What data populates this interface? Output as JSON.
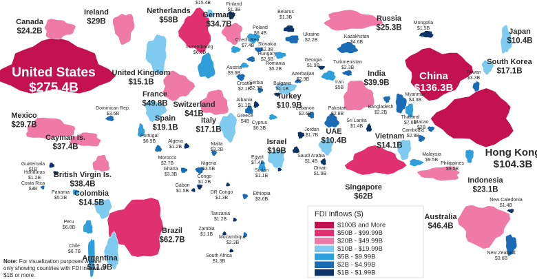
{
  "title": null,
  "countries": [
    {
      "name": "United States",
      "value": "$275.4B",
      "color": "#c3124f"
    },
    {
      "name": "Canada",
      "value": "$24.2B",
      "color": "#f07aa6"
    },
    {
      "name": "Ireland",
      "value": "$29B",
      "color": "#f07aa6"
    },
    {
      "name": "Netherlands",
      "value": "$58B",
      "color": "#e0306f"
    },
    {
      "value": "$15.4B",
      "color": "#7fcbf0"
    },
    {
      "name": "Finland",
      "value": "$1.3B",
      "color": "#0d3466"
    },
    {
      "name": "Germany",
      "value": "$34.7B",
      "color": "#f07aa6"
    },
    {
      "name": "Belarus",
      "value": "$1.3B",
      "color": "#0d3466"
    },
    {
      "name": "Russia",
      "value": "$25.3B",
      "color": "#f07aa6"
    },
    {
      "name": "Poland",
      "value": "$6.4B",
      "color": "#2f9fdc"
    },
    {
      "name": "Ukraine",
      "value": "$2.2B",
      "color": "#1a6cb4"
    },
    {
      "name": "Kazakhstan",
      "value": "$4.6B",
      "color": "#1a6cb4"
    },
    {
      "name": "Czech Rep.",
      "value": "$7.4B",
      "color": "#2f9fdc"
    },
    {
      "name": "Slovakia",
      "value": "$2.3B",
      "color": "#1a6cb4"
    },
    {
      "name": "Hungary",
      "value": "$2.5B",
      "color": "#1a6cb4"
    },
    {
      "name": "Austria",
      "value": "$9.6B",
      "color": "#2f9fdc"
    },
    {
      "name": "Romania",
      "value": "$5.2B",
      "color": "#2f9fdc"
    },
    {
      "name": "Croatia",
      "value": "$2.1B",
      "color": "#1a6cb4"
    },
    {
      "name": "Mongolia",
      "value": "$1.5B",
      "color": "#0d3466"
    },
    {
      "name": "Japan",
      "value": "$10.4B",
      "color": "#7fcbf0"
    },
    {
      "name": "South Korea",
      "value": "$17.1B",
      "color": "#7fcbf0"
    },
    {
      "name": "United Kingdom",
      "value": "$15.1B",
      "color": "#7fcbf0"
    },
    {
      "name": "Luxembourg",
      "value": "$6.6B",
      "color": "#2f9fdc"
    },
    {
      "name": "France",
      "value": "$49.8B",
      "color": "#f07aa6"
    },
    {
      "name": "Georgia",
      "value": "$1.9B",
      "color": "#0d3466"
    },
    {
      "name": "Turkmenistan",
      "value": "$2.3B",
      "color": "#1a6cb4"
    },
    {
      "name": "Azerbaijan",
      "value": "$2.9B",
      "color": "#1a6cb4"
    },
    {
      "name": "Serbia",
      "value": "$2.3B",
      "color": "#1a6cb4"
    },
    {
      "name": "Bulgaria",
      "value": "$1.1B",
      "color": "#0d3466"
    },
    {
      "name": "Iran",
      "value": "$5B",
      "color": "#2f9fdc"
    },
    {
      "name": "India",
      "value": "$39.9B",
      "color": "#f07aa6"
    },
    {
      "name": "China",
      "value": "$136.3B",
      "color": "#c3124f"
    },
    {
      "name": "Taiwan",
      "value": "$3.3B",
      "color": "#1a6cb4"
    },
    {
      "name": "Switzerland",
      "value": "$41B",
      "color": "#f07aa6"
    },
    {
      "name": "Albania",
      "value": "$1.1B",
      "color": "#0d3466"
    },
    {
      "name": "Turkey",
      "value": "$10.9B",
      "color": "#7fcbf0"
    },
    {
      "name": "Lebanon",
      "value": "$2.6B",
      "color": "#1a6cb4"
    },
    {
      "name": "Pakistan",
      "value": "$2.8B",
      "color": "#1a6cb4"
    },
    {
      "name": "Myanmar",
      "value": "$4.3B",
      "color": "#1a6cb4"
    },
    {
      "name": "Bangladesh",
      "value": "$2.2B",
      "color": "#1a6cb4"
    },
    {
      "name": "Dominican Rep.",
      "value": "$3.6B",
      "color": "#1a6cb4"
    },
    {
      "name": "Mexico",
      "value": "$29.7B",
      "color": "#f07aa6"
    },
    {
      "name": "Spain",
      "value": "$19.1B",
      "color": "#7fcbf0"
    },
    {
      "name": "Italy",
      "value": "$17.1B",
      "color": "#7fcbf0"
    },
    {
      "name": "Greece",
      "value": "$4B",
      "color": "#1a6cb4"
    },
    {
      "name": "Cyprus",
      "value": "$6.3B",
      "color": "#2f9fdc"
    },
    {
      "name": "Macao",
      "value": "$2B",
      "color": "#1a6cb4"
    },
    {
      "name": "Thailand",
      "value": "$7.6B",
      "color": "#2f9fdc"
    },
    {
      "name": "Sri Lanka",
      "value": "$1.4B",
      "color": "#0d3466"
    },
    {
      "name": "Cambodia",
      "value": "$2.8B",
      "color": "#1a6cb4"
    },
    {
      "name": "Vietnam",
      "value": "$14.1B",
      "color": "#7fcbf0"
    },
    {
      "name": "Hong Kong",
      "value": "$104.3B",
      "color": "#c3124f"
    },
    {
      "name": "Portugal",
      "value": "$6.9B",
      "color": "#2f9fdc"
    },
    {
      "name": "Jordan",
      "value": "$1.7B",
      "color": "#0d3466"
    },
    {
      "name": "UAE",
      "value": "$10.4B",
      "color": "#7fcbf0"
    },
    {
      "name": "Cayman Is.",
      "value": "$37.4B",
      "color": "#f07aa6"
    },
    {
      "name": "Algeria",
      "value": "$1.2B",
      "color": "#0d3466"
    },
    {
      "name": "Malta",
      "value": "$3.2B",
      "color": "#1a6cb4"
    },
    {
      "name": "Israel",
      "value": "$19B",
      "color": "#7fcbf0"
    },
    {
      "name": "Saudi Arabia",
      "value": "$1.4B",
      "color": "#0d3466"
    },
    {
      "name": "Malaysia",
      "value": "$9.5B",
      "color": "#2f9fdc"
    },
    {
      "name": "Philippines",
      "value": "$9.5B",
      "color": "#2f9fdc"
    },
    {
      "name": "Oman",
      "value": "$1.9B",
      "color": "#0d3466"
    },
    {
      "name": "Morocco",
      "value": "$2.7B",
      "color": "#1a6cb4"
    },
    {
      "name": "Ghana",
      "value": "$3.3B",
      "color": "#1a6cb4"
    },
    {
      "name": "Nigeria",
      "value": "$3.5B",
      "color": "#1a6cb4"
    },
    {
      "name": "Egypt",
      "value": "$7.4B",
      "color": "#2f9fdc"
    },
    {
      "name": "Guatemala",
      "value": "$1B",
      "color": "#0d3466"
    },
    {
      "name": "Honduras",
      "value": "$1.2B",
      "color": "#0d3466"
    },
    {
      "name": "Costa Rica",
      "value": "$3B",
      "color": "#1a6cb4"
    },
    {
      "name": "British Virgin Is.",
      "value": "$38.4B",
      "color": "#f07aa6"
    },
    {
      "name": "Sudan",
      "value": "$1.1B",
      "color": "#0d3466"
    },
    {
      "name": "Congo",
      "value": "$1.2B",
      "color": "#0d3466"
    },
    {
      "name": "Indonesia",
      "value": "$23.1B",
      "color": "#f07aa6"
    },
    {
      "name": "Singapore",
      "value": "$62B",
      "color": "#e0306f"
    },
    {
      "name": "Panama",
      "value": "$5.3B",
      "color": "#2f9fdc"
    },
    {
      "name": "Colombia",
      "value": "$14.5B",
      "color": "#7fcbf0"
    },
    {
      "name": "Gabon",
      "value": "$1.5B",
      "color": "#0d3466"
    },
    {
      "name": "DR Congo",
      "value": "$1.3B",
      "color": "#0d3466"
    },
    {
      "name": "Ethiopia",
      "value": "$3.6B",
      "color": "#1a6cb4"
    },
    {
      "name": "New Caledonia",
      "value": "$1.4B",
      "color": "#0d3466"
    },
    {
      "name": "Peru",
      "value": "$6.8B",
      "color": "#2f9fdc"
    },
    {
      "name": "Tanzania",
      "value": "$1.2B",
      "color": "#0d3466"
    },
    {
      "name": "Australia",
      "value": "$46.4B",
      "color": "#f07aa6"
    },
    {
      "name": "Brazil",
      "value": "$62.7B",
      "color": "#e0306f"
    },
    {
      "name": "Zambia",
      "value": "$1.1B",
      "color": "#0d3466"
    },
    {
      "name": "Mozambique",
      "value": "$2.3B",
      "color": "#1a6cb4"
    },
    {
      "name": "Chile",
      "value": "$6.7B",
      "color": "#2f9fdc"
    },
    {
      "name": "Argentina",
      "value": "$11.9B",
      "color": "#7fcbf0"
    },
    {
      "name": "South Africa",
      "value": "$1.3B",
      "color": "#0d3466"
    },
    {
      "name": "New Zealand",
      "value": "$3.6B",
      "color": "#1a6cb4"
    }
  ],
  "legend": {
    "title": "FDI inflows ($)",
    "items": [
      {
        "label": "$100B and More",
        "color": "#c3124f"
      },
      {
        "label": "$50B - $99.99B",
        "color": "#e0306f"
      },
      {
        "label": "$20B - $49.99B",
        "color": "#f07aa6"
      },
      {
        "label": "$10B - $19.99B",
        "color": "#7fcbf0"
      },
      {
        "label": "$5B - $9.99B",
        "color": "#2f9fdc"
      },
      {
        "label": "$2B - $4.99B",
        "color": "#1a6cb4"
      },
      {
        "label": "$1B - $1.99B",
        "color": "#0d3466"
      }
    ]
  },
  "note": {
    "label": "Note:",
    "text": "For visualization purposes we are only showing countries with FDI inflows of $1B or more."
  }
}
